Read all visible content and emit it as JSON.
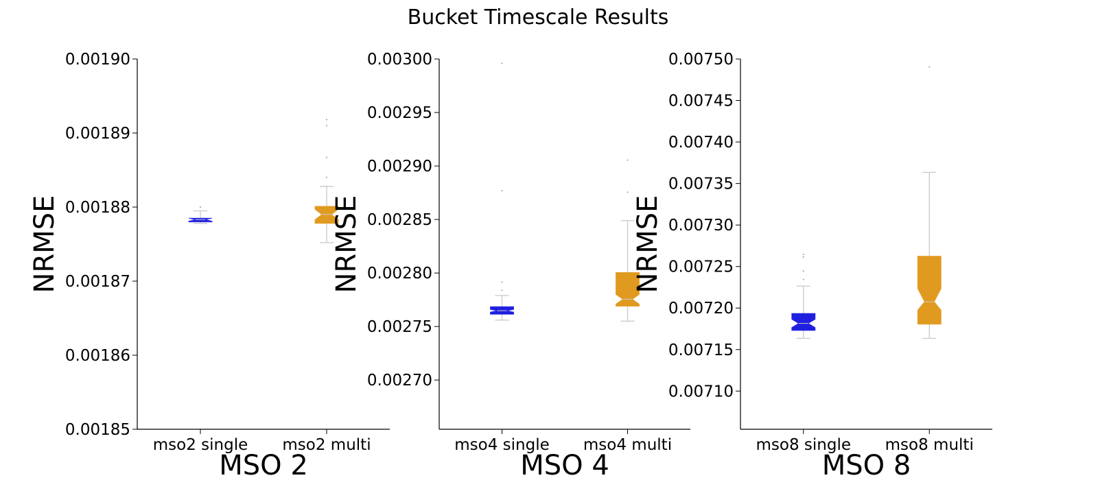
{
  "title": "Bucket Timescale Results",
  "chart_data": [
    {
      "type": "box",
      "title": "",
      "xlabel": "MSO 2",
      "ylabel": "NRMSE",
      "ylim": [
        0.00185,
        0.0019
      ],
      "yticks": [
        "0.00185",
        "0.00186",
        "0.00187",
        "0.00188",
        "0.00189",
        "0.00190"
      ],
      "notched": true,
      "grid": false,
      "categories": [
        "mso2 single",
        "mso2 multi"
      ],
      "series": [
        {
          "name": "mso2 single",
          "color": "#1f1fe0",
          "whisker_low": 0.0018778,
          "q1": 0.001878,
          "median": 0.0018783,
          "q3": 0.0018785,
          "whisker_high": 0.0018795,
          "notch_low": 0.0018781,
          "notch_high": 0.0018785,
          "outliers": [
            0.00188
          ]
        },
        {
          "name": "mso2 multi",
          "color": "#e09a20",
          "whisker_low": 0.0018752,
          "q1": 0.0018778,
          "median": 0.001879,
          "q3": 0.0018801,
          "whisker_high": 0.0018828,
          "notch_low": 0.0018783,
          "notch_high": 0.0018797,
          "outliers": [
            0.001884,
            0.0018867,
            0.001891,
            0.0018918
          ]
        }
      ]
    },
    {
      "type": "box",
      "title": "",
      "xlabel": "MSO 4",
      "ylabel": "NRMSE",
      "ylim": [
        0.002654,
        0.003
      ],
      "yticks": [
        "0.00270",
        "0.00275",
        "0.00280",
        "0.00285",
        "0.00290",
        "0.00295",
        "0.00300"
      ],
      "notched": true,
      "grid": false,
      "categories": [
        "mso4 single",
        "mso4 multi"
      ],
      "series": [
        {
          "name": "mso4 single",
          "color": "#1f1fe0",
          "whisker_low": 0.002756,
          "q1": 0.0027615,
          "median": 0.0027648,
          "q3": 0.0027685,
          "whisker_high": 0.002779,
          "notch_low": 0.0027635,
          "notch_high": 0.002766,
          "outliers": [
            0.002784,
            0.0027915,
            0.002877,
            0.002996
          ]
        },
        {
          "name": "mso4 multi",
          "color": "#e09a20",
          "whisker_low": 0.002755,
          "q1": 0.002769,
          "median": 0.0027755,
          "q3": 0.0028005,
          "whisker_high": 0.002849,
          "notch_low": 0.002771,
          "notch_high": 0.00278,
          "outliers": [
            0.0028755,
            0.0029055
          ]
        }
      ]
    },
    {
      "type": "box",
      "title": "",
      "xlabel": "MSO 8",
      "ylabel": "NRMSE",
      "ylim": [
        0.007054,
        0.0075
      ],
      "yticks": [
        "0.00710",
        "0.00715",
        "0.00720",
        "0.00725",
        "0.00730",
        "0.00735",
        "0.00740",
        "0.00745",
        "0.00750"
      ],
      "notched": true,
      "grid": false,
      "categories": [
        "mso8 single",
        "mso8 multi"
      ],
      "series": [
        {
          "name": "mso8 single",
          "color": "#1f1fe0",
          "whisker_low": 0.0071635,
          "q1": 0.007173,
          "median": 0.0071815,
          "q3": 0.0071935,
          "whisker_high": 0.0072265,
          "notch_low": 0.0071765,
          "notch_high": 0.0071865,
          "outliers": [
            0.0072345,
            0.0072445,
            0.0072615,
            0.0072645
          ]
        },
        {
          "name": "mso8 multi",
          "color": "#e09a20",
          "whisker_low": 0.0071635,
          "q1": 0.0071805,
          "median": 0.0072075,
          "q3": 0.0072625,
          "whisker_high": 0.0073635,
          "notch_low": 0.0071975,
          "notch_high": 0.0072235,
          "outliers": [
            0.0074905
          ]
        }
      ]
    }
  ]
}
